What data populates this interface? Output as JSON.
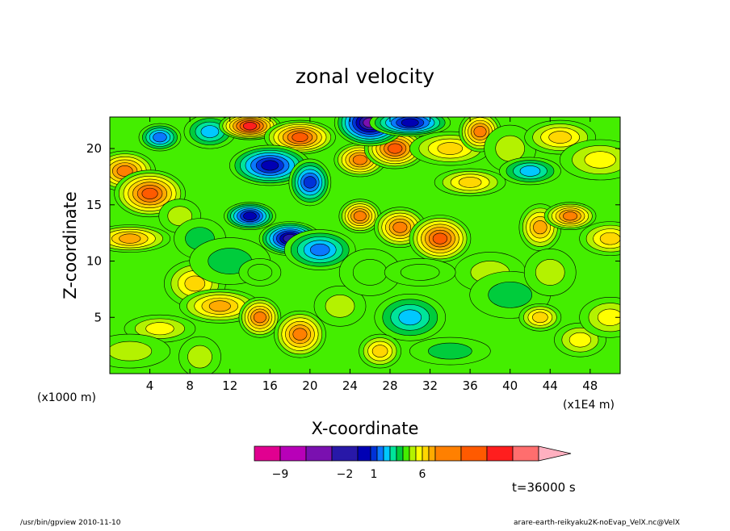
{
  "chart_data": {
    "type": "heatmap",
    "title": "zonal velocity",
    "xlabel": "X-coordinate",
    "ylabel": "Z-coordinate",
    "x_unit_left": "(x1000 m)",
    "x_unit_right": "(x1E4 m)",
    "xlim": [
      0,
      51
    ],
    "ylim": [
      0,
      22.8
    ],
    "xticks": [
      4,
      8,
      12,
      16,
      20,
      24,
      28,
      32,
      36,
      40,
      44,
      48
    ],
    "yticks": [
      5,
      10,
      15,
      20
    ],
    "colorbar": {
      "levels": [
        -10,
        -9,
        -8,
        -7,
        -6,
        -5,
        -4,
        -3,
        -2,
        -1,
        0,
        1,
        2,
        3,
        4,
        5,
        6,
        7,
        8,
        9
      ],
      "colors": [
        "#e10090",
        "#b800b8",
        "#7a10b0",
        "#2818a8",
        "#0000b4",
        "#0032d8",
        "#0a78ff",
        "#00c8ff",
        "#00e49a",
        "#00cc3c",
        "#44ee00",
        "#b4f200",
        "#ffff00",
        "#ffd700",
        "#ffaa00",
        "#ff8000",
        "#ff5a00",
        "#ff1e1e",
        "#ff6e6e",
        "#ffb0c0"
      ],
      "labels": [
        {
          "value": -9,
          "text": "−9"
        },
        {
          "value": -2,
          "text": "−2"
        },
        {
          "value": 1,
          "text": "1"
        },
        {
          "value": 6,
          "text": "6"
        }
      ]
    },
    "field_blobs": [
      {
        "x": 5,
        "z": 21,
        "v": -4
      },
      {
        "x": 10,
        "z": 21.5,
        "v": -3
      },
      {
        "x": 1.5,
        "z": 18,
        "v": 5
      },
      {
        "x": 4,
        "z": 16,
        "v": 6
      },
      {
        "x": 2,
        "z": 12,
        "v": 4
      },
      {
        "x": 7,
        "z": 14,
        "v": 1
      },
      {
        "x": 9,
        "z": 12,
        "v": -1
      },
      {
        "x": 8.5,
        "z": 8,
        "v": 3
      },
      {
        "x": 5,
        "z": 4,
        "v": 2
      },
      {
        "x": 11,
        "z": 6,
        "v": 4
      },
      {
        "x": 15,
        "z": 5,
        "v": 5
      },
      {
        "x": 19,
        "z": 3.5,
        "v": 5
      },
      {
        "x": 14,
        "z": 22,
        "v": 7
      },
      {
        "x": 19,
        "z": 21,
        "v": 6
      },
      {
        "x": 16,
        "z": 18.5,
        "v": -6
      },
      {
        "x": 20,
        "z": 17,
        "v": -5
      },
      {
        "x": 14,
        "z": 14,
        "v": -6
      },
      {
        "x": 18,
        "z": 12,
        "v": -7
      },
      {
        "x": 21,
        "z": 11,
        "v": -4
      },
      {
        "x": 12,
        "z": 10,
        "v": -1
      },
      {
        "x": 15,
        "z": 9,
        "v": 0
      },
      {
        "x": 25,
        "z": 19,
        "v": 5
      },
      {
        "x": 28.5,
        "z": 20,
        "v": 6
      },
      {
        "x": 26,
        "z": 22.3,
        "v": -8
      },
      {
        "x": 30,
        "z": 22.3,
        "v": -6
      },
      {
        "x": 25,
        "z": 14,
        "v": 5
      },
      {
        "x": 29,
        "z": 13,
        "v": 5
      },
      {
        "x": 33,
        "z": 12,
        "v": 6
      },
      {
        "x": 36,
        "z": 17,
        "v": 3
      },
      {
        "x": 34,
        "z": 20,
        "v": 3
      },
      {
        "x": 37,
        "z": 21.5,
        "v": 5
      },
      {
        "x": 40,
        "z": 20,
        "v": 1
      },
      {
        "x": 42,
        "z": 18,
        "v": -3
      },
      {
        "x": 45,
        "z": 21,
        "v": 3
      },
      {
        "x": 49,
        "z": 19,
        "v": 2
      },
      {
        "x": 43,
        "z": 13,
        "v": 4
      },
      {
        "x": 46,
        "z": 14,
        "v": 5
      },
      {
        "x": 50,
        "z": 12,
        "v": 3
      },
      {
        "x": 38,
        "z": 9,
        "v": 1
      },
      {
        "x": 40,
        "z": 7,
        "v": -1
      },
      {
        "x": 43,
        "z": 5,
        "v": 3
      },
      {
        "x": 47,
        "z": 3,
        "v": 2
      },
      {
        "x": 50,
        "z": 5,
        "v": 2
      },
      {
        "x": 30,
        "z": 5,
        "v": -3
      },
      {
        "x": 34,
        "z": 2,
        "v": -1
      },
      {
        "x": 27,
        "z": 2,
        "v": 3
      },
      {
        "x": 23,
        "z": 6,
        "v": 1
      },
      {
        "x": 26,
        "z": 9,
        "v": 0
      },
      {
        "x": 31,
        "z": 9,
        "v": 0
      },
      {
        "x": 2,
        "z": 2,
        "v": 1
      },
      {
        "x": 9,
        "z": 1.5,
        "v": 1
      },
      {
        "x": 44,
        "z": 9,
        "v": 1
      }
    ]
  },
  "time_label": "t=36000 s",
  "footer": {
    "left": "/usr/bin/gpview   2010-11-10",
    "right": "arare-earth-reikyaku2K-noEvap_VelX.nc@VelX"
  }
}
